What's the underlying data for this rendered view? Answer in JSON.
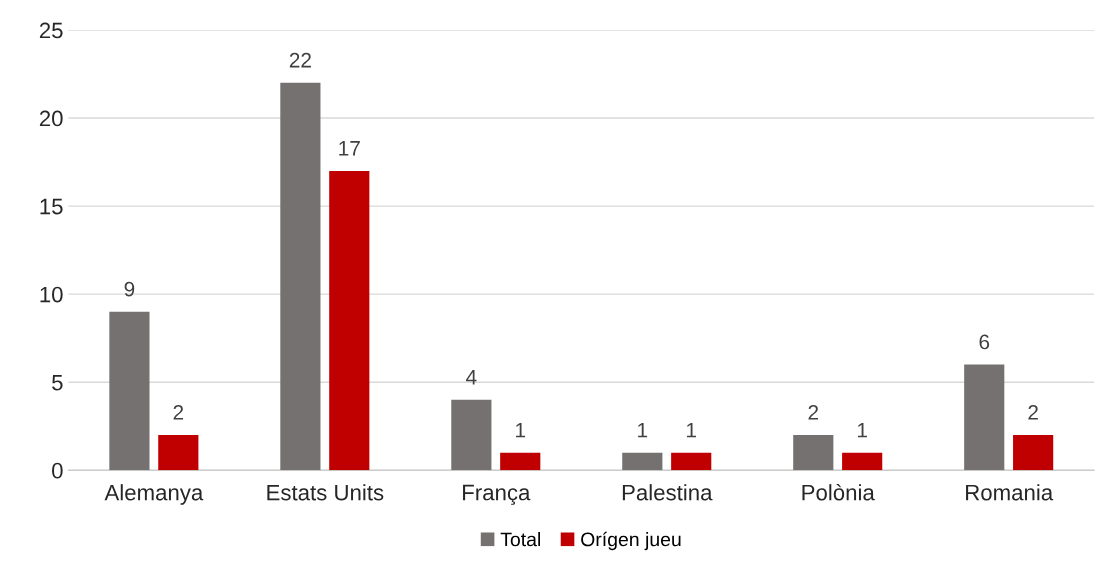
{
  "chart_data": {
    "type": "bar",
    "categories": [
      "Alemanya",
      "Estats Units",
      "França",
      "Palestina",
      "Polònia",
      "Romania"
    ],
    "series": [
      {
        "name": "Total",
        "color": "#767171",
        "values": [
          9,
          22,
          4,
          1,
          2,
          6
        ]
      },
      {
        "name": "Orígen jueu",
        "color": "#c00000",
        "values": [
          2,
          17,
          1,
          1,
          1,
          2
        ]
      }
    ],
    "ylim": [
      0,
      25
    ],
    "yticks": [
      0,
      5,
      10,
      15,
      20,
      25
    ],
    "grid": "y",
    "legend": "bottom",
    "data_labels": true
  }
}
